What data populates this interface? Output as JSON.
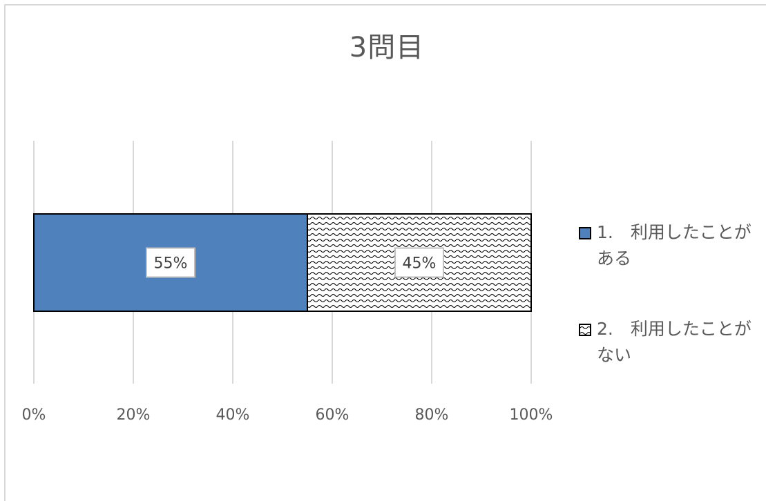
{
  "chart_data": {
    "type": "bar",
    "orientation": "horizontal",
    "stacked": "percent",
    "title": "3問目",
    "categories": [
      ""
    ],
    "series": [
      {
        "name": "1.　利用したことがある",
        "values": [
          55
        ],
        "label": "55%",
        "color": "#4f81bd",
        "pattern": "solid"
      },
      {
        "name": "2.　利用したことがない",
        "values": [
          45
        ],
        "label": "45%",
        "color": "#ffffff",
        "pattern": "wave"
      }
    ],
    "xlim": [
      0,
      100
    ],
    "xticks": [
      0,
      20,
      40,
      60,
      80,
      100
    ],
    "xtick_labels": [
      "0%",
      "20%",
      "40%",
      "60%",
      "80%",
      "100%"
    ],
    "grid": true,
    "legend_position": "right"
  }
}
